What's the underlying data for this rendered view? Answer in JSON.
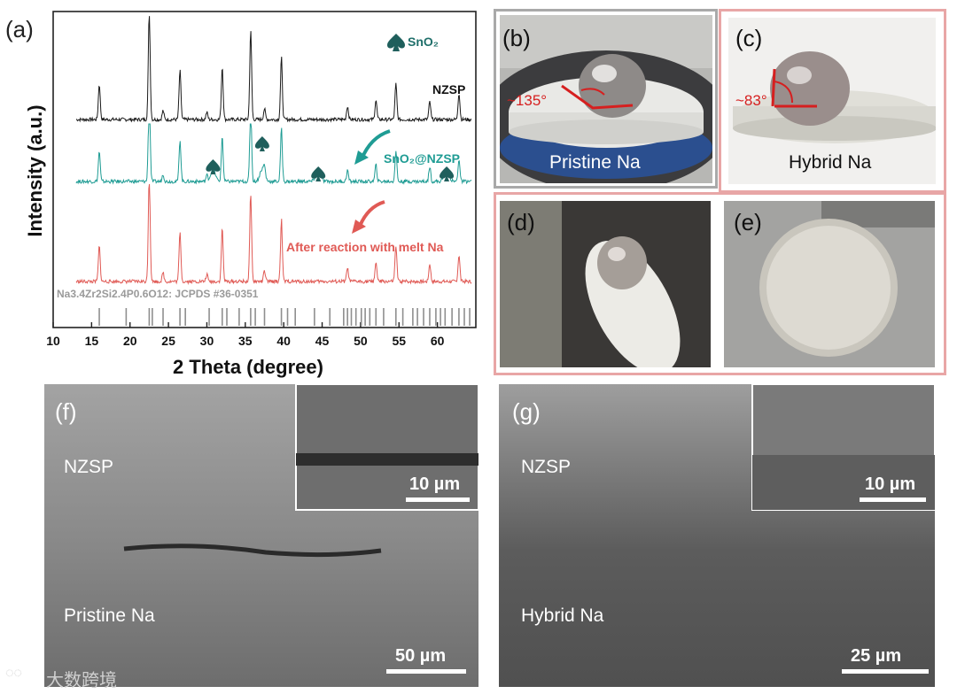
{
  "panel_a": {
    "label": "(a)",
    "chart_data": {
      "type": "line",
      "xlabel": "2 Theta (degree)",
      "ylabel": "Intensity (a.u.)",
      "xlim": [
        10,
        65
      ],
      "xticks": [
        10,
        15,
        20,
        25,
        30,
        35,
        40,
        45,
        50,
        55,
        60
      ],
      "legend_marker": "SnO₂",
      "series": [
        {
          "name": "NZSP",
          "color": "#1a1a1a"
        },
        {
          "name": "SnO₂@NZSP",
          "color": "#1f9c94"
        },
        {
          "name": "After reaction with melt Na",
          "color": "#e05a55"
        }
      ],
      "peaks": [
        {
          "x": 16,
          "h": 40
        },
        {
          "x": 22.5,
          "h": 120
        },
        {
          "x": 24.3,
          "h": 10
        },
        {
          "x": 26.5,
          "h": 55
        },
        {
          "x": 30,
          "h": 8
        },
        {
          "x": 32,
          "h": 60
        },
        {
          "x": 35.7,
          "h": 100
        },
        {
          "x": 37.5,
          "h": 12
        },
        {
          "x": 39.7,
          "h": 70
        },
        {
          "x": 48.3,
          "h": 15
        },
        {
          "x": 52,
          "h": 22
        },
        {
          "x": 54.6,
          "h": 40
        },
        {
          "x": 59,
          "h": 20
        },
        {
          "x": 62.8,
          "h": 30
        }
      ],
      "sno2_peaks": [
        30.8,
        37.2,
        44.5,
        61.2
      ],
      "reference": "Na3.4Zr2Si2.4P0.6O12: JCPDS #36-0351",
      "reference_lines": [
        16,
        19.5,
        22.5,
        22.9,
        24.3,
        26.5,
        27.2,
        30.3,
        32,
        32.6,
        34.2,
        35.7,
        36.3,
        37.5,
        39.7,
        40.5,
        41.5,
        44,
        46,
        47.8,
        48.3,
        48.8,
        49.4,
        50.1,
        50.6,
        51.2,
        52,
        53,
        54.6,
        55.5,
        56.8,
        57.4,
        58.2,
        59,
        59.8,
        60.4,
        61,
        61.9,
        62.8,
        63.5,
        64.2
      ]
    }
  },
  "panel_b": {
    "label": "(b)",
    "angle": "~135°",
    "caption": "Pristine Na"
  },
  "panel_c": {
    "label": "(c)",
    "angle": "~83°",
    "caption": "Hybrid Na"
  },
  "panel_d": {
    "label": "(d)"
  },
  "panel_e": {
    "label": "(e)"
  },
  "panel_f": {
    "label": "(f)",
    "top_text": "NZSP",
    "bottom_text": "Pristine Na",
    "scale": "50 µm",
    "inset_scale": "10 µm"
  },
  "panel_g": {
    "label": "(g)",
    "top_text": "NZSP",
    "bottom_text": "Hybrid Na",
    "scale": "25 µm",
    "inset_scale": "10 µm"
  },
  "watermark": "大数跨境",
  "colors": {
    "teal": "#1f9c94",
    "red": "#e05a55",
    "frame_grey": "#a9a9a9",
    "frame_pink": "#e8a6a6"
  }
}
